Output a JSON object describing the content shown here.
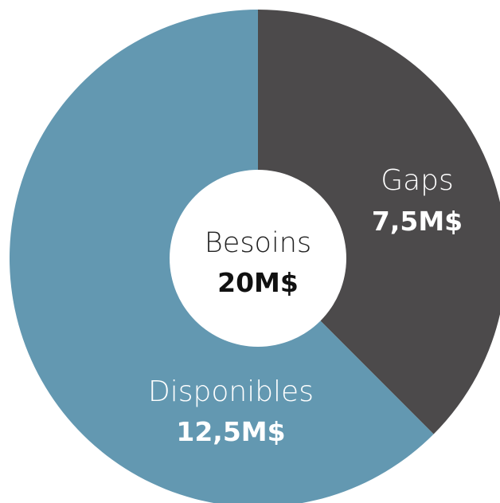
{
  "chart_data": {
    "type": "pie",
    "title": "",
    "center": {
      "label": "Besoins",
      "value_label": "20M$",
      "value": 20
    },
    "slices": [
      {
        "label": "Gaps",
        "value": 7.5,
        "value_label": "7,5M$",
        "color": "#4c4a4b"
      },
      {
        "label": "Disponibles",
        "value": 12.5,
        "value_label": "12,5M$",
        "color": "#6398b1"
      }
    ]
  }
}
